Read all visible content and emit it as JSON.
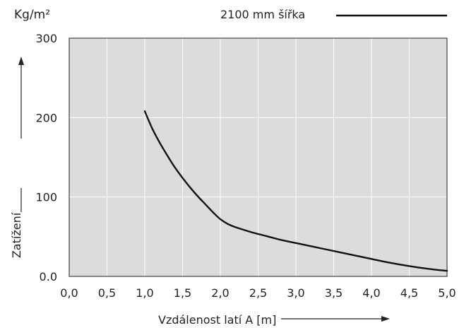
{
  "chart_data": {
    "type": "line",
    "unit_label": "Kg/m²",
    "xlabel": "Vzdálenost latí A [m]",
    "ylabel": "Zatížení",
    "xlim": [
      0,
      5
    ],
    "ylim": [
      0,
      300
    ],
    "x_ticks": [
      0,
      0.5,
      1.0,
      1.5,
      2.0,
      2.5,
      3.0,
      3.5,
      4.0,
      4.5,
      5.0
    ],
    "x_tick_labels": [
      "0,0",
      "0,5",
      "1,0",
      "1,5",
      "2,0",
      "2,5",
      "3,0",
      "3,5",
      "4,0",
      "4,5",
      "5,0"
    ],
    "y_ticks": [
      0,
      100,
      200,
      300
    ],
    "y_tick_labels": [
      "0.0",
      "100",
      "200",
      "300"
    ],
    "grid": true,
    "legend_position": "top-right",
    "series": [
      {
        "name": "2100 mm šířka",
        "color": "#111111",
        "x": [
          1.0,
          1.1,
          1.2,
          1.3,
          1.4,
          1.5,
          1.6,
          1.7,
          1.8,
          1.9,
          2.0,
          2.1,
          2.2,
          2.4,
          2.6,
          2.8,
          3.0,
          3.2,
          3.5,
          3.8,
          4.0,
          4.2,
          4.5,
          4.8,
          5.0
        ],
        "values": [
          208,
          186,
          168,
          152,
          137,
          124,
          112,
          101,
          91,
          81,
          72,
          66,
          62,
          56,
          51,
          46,
          42,
          38,
          32,
          26,
          22,
          18,
          13,
          9,
          7
        ]
      }
    ]
  }
}
